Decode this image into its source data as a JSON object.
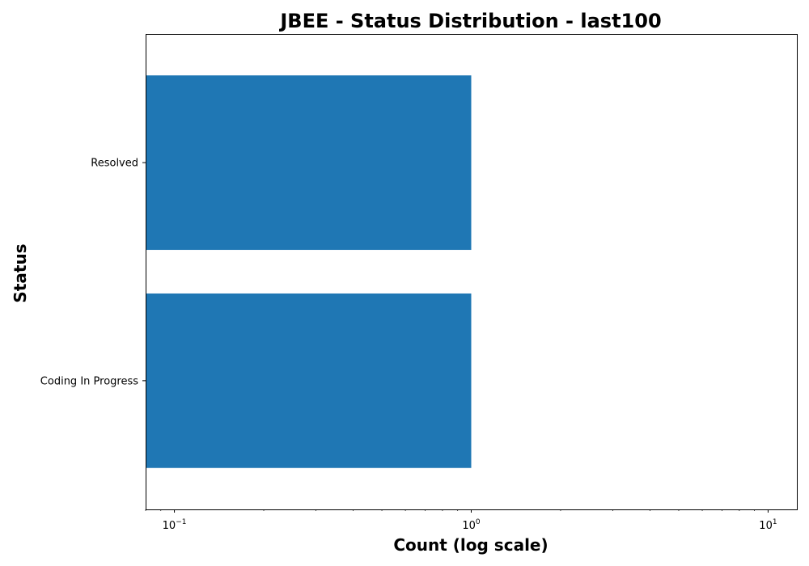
{
  "chart_data": {
    "type": "bar",
    "orientation": "horizontal",
    "title": "JBEE - Status Distribution - last100",
    "xlabel": "Count (log scale)",
    "ylabel": "Status",
    "x_scale": "log",
    "xlim": [
      0.08,
      12.5
    ],
    "categories": [
      "Resolved",
      "Coding In Progress"
    ],
    "values": [
      1,
      1
    ],
    "bar_color": "#1f77b4",
    "x_major_ticks": [
      0.1,
      1,
      10
    ],
    "x_major_tick_labels": [
      {
        "base": "10",
        "exp": "−1"
      },
      {
        "base": "10",
        "exp": "0"
      },
      {
        "base": "10",
        "exp": "1"
      }
    ],
    "grid": false,
    "legend": "none"
  }
}
